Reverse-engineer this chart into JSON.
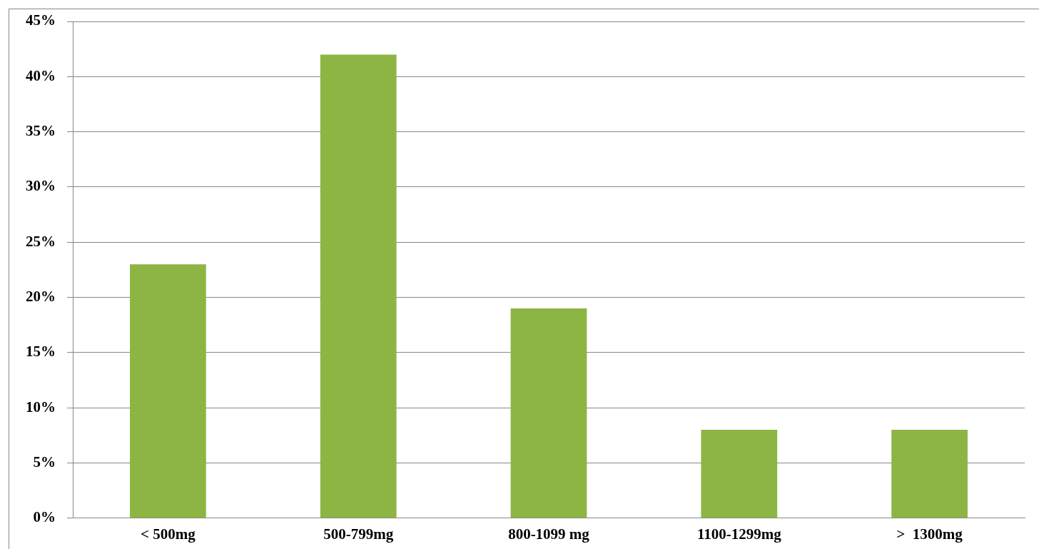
{
  "chart_data": {
    "type": "bar",
    "categories": [
      "< 500mg",
      "500-799mg",
      "800-1099 mg",
      "1100-1299mg",
      ">  1300mg"
    ],
    "values": [
      23,
      42,
      19,
      8,
      8
    ],
    "color": "#8db543",
    "ylim": [
      0,
      45
    ],
    "yticks": [
      {
        "value": 0,
        "label": "0%"
      },
      {
        "value": 5,
        "label": "5%"
      },
      {
        "value": 10,
        "label": "10%"
      },
      {
        "value": 15,
        "label": "15%"
      },
      {
        "value": 20,
        "label": "20%"
      },
      {
        "value": 25,
        "label": "25%"
      },
      {
        "value": 30,
        "label": "30%"
      },
      {
        "value": 35,
        "label": "35%"
      },
      {
        "value": 40,
        "label": "40%"
      },
      {
        "value": 45,
        "label": "45%"
      }
    ],
    "grid": "y",
    "legend": false
  }
}
